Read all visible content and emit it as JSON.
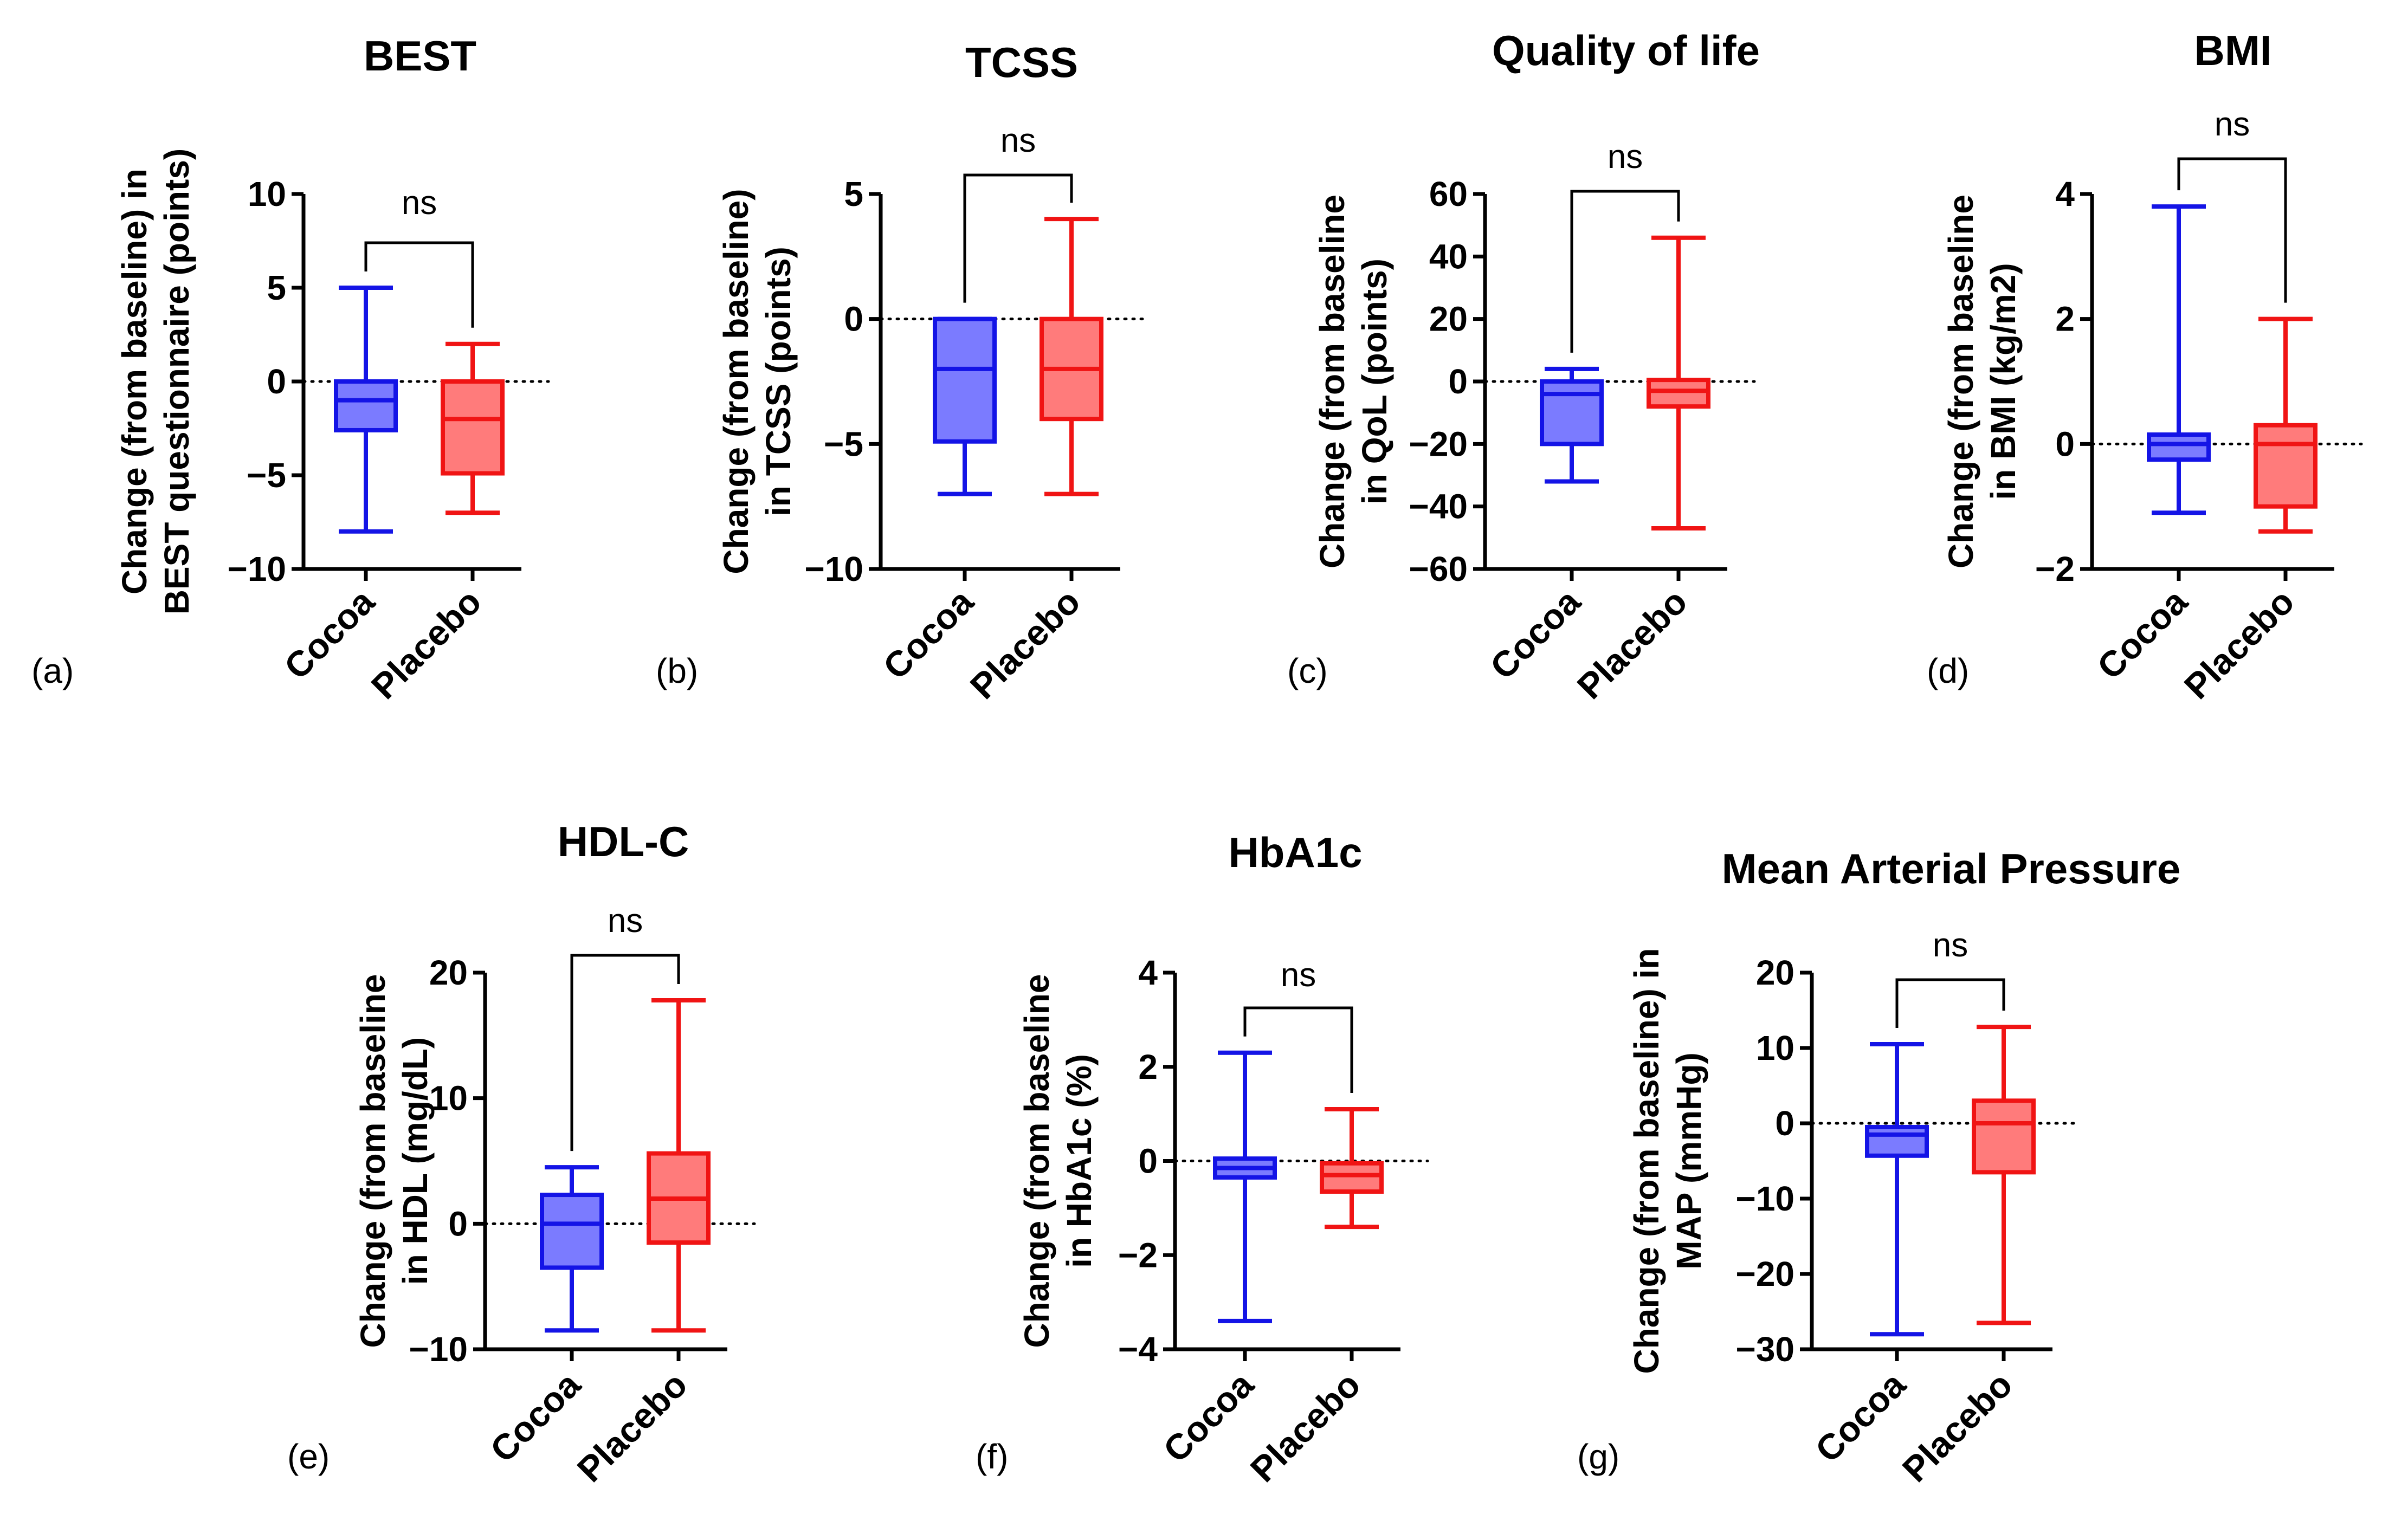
{
  "figure": {
    "colors": {
      "cocoa_stroke": "#1414e6",
      "cocoa_fill": "#7b7bff",
      "placebo_stroke": "#f01414",
      "placebo_fill": "#ff7b7b"
    },
    "categories": [
      "Cocoa",
      "Placebo"
    ]
  },
  "chart_data": [
    {
      "type": "box",
      "panel_label": "(a)",
      "title": "BEST",
      "ylabel": [
        "Change (from baseline) in",
        "BEST questionnaire (points)"
      ],
      "ylim": [
        -10,
        10
      ],
      "yticks": [
        "10",
        "5",
        "0",
        "−5",
        "−10"
      ],
      "ytick_values": [
        10,
        5,
        0,
        -5,
        -10
      ],
      "significance": "ns",
      "categories": [
        "Cocoa",
        "Placebo"
      ],
      "series": [
        {
          "name": "Cocoa",
          "min": -8,
          "q1": -2.6,
          "median": -1,
          "q3": 0,
          "max": 5
        },
        {
          "name": "Placebo",
          "min": -7,
          "q1": -4.9,
          "median": -2,
          "q3": 0,
          "max": 2
        }
      ],
      "reference_line": 0
    },
    {
      "type": "box",
      "panel_label": "(b)",
      "title": "TCSS",
      "ylabel": [
        "Change (from baseline)",
        "in TCSS (points)"
      ],
      "ylim": [
        -10,
        5
      ],
      "yticks": [
        "5",
        "0",
        "−5",
        "−10"
      ],
      "ytick_values": [
        5,
        0,
        -5,
        -10
      ],
      "significance": "ns",
      "categories": [
        "Cocoa",
        "Placebo"
      ],
      "series": [
        {
          "name": "Cocoa",
          "min": -7,
          "q1": -4.9,
          "median": -2,
          "q3": 0,
          "max": 0
        },
        {
          "name": "Placebo",
          "min": -7,
          "q1": -4,
          "median": -2,
          "q3": 0,
          "max": 4
        }
      ],
      "reference_line": 0
    },
    {
      "type": "box",
      "panel_label": "(c)",
      "title": "Quality of life",
      "ylabel": [
        "Change (from baseline",
        "in QoL (points)"
      ],
      "ylim": [
        -60,
        60
      ],
      "yticks": [
        "60",
        "40",
        "20",
        "0",
        "−20",
        "−40",
        "−60"
      ],
      "ytick_values": [
        60,
        40,
        20,
        0,
        -20,
        -40,
        -60
      ],
      "significance": "ns",
      "categories": [
        "Cocoa",
        "Placebo"
      ],
      "series": [
        {
          "name": "Cocoa",
          "min": -32,
          "q1": -20,
          "median": -4,
          "q3": 0,
          "max": 4
        },
        {
          "name": "Placebo",
          "min": -47,
          "q1": -8,
          "median": -3,
          "q3": 0.5,
          "max": 46
        }
      ],
      "reference_line": 0
    },
    {
      "type": "box",
      "panel_label": "(d)",
      "title": "BMI",
      "ylabel": [
        "Change (from baseline",
        "in BMI (kg/m2)"
      ],
      "ylim": [
        -2,
        4
      ],
      "yticks": [
        "4",
        "2",
        "0",
        "−2"
      ],
      "ytick_values": [
        4,
        2,
        0,
        -2
      ],
      "significance": "ns",
      "categories": [
        "Cocoa",
        "Placebo"
      ],
      "series": [
        {
          "name": "Cocoa",
          "min": -1.1,
          "q1": -0.25,
          "median": 0,
          "q3": 0.15,
          "max": 3.8
        },
        {
          "name": "Placebo",
          "min": -1.4,
          "q1": -1,
          "median": 0,
          "q3": 0.3,
          "max": 2
        }
      ],
      "reference_line": 0
    },
    {
      "type": "box",
      "panel_label": "(e)",
      "title": "HDL-C",
      "ylabel": [
        "Change (from baseline",
        "in HDL (mg/dL)"
      ],
      "ylim": [
        -10,
        20
      ],
      "yticks": [
        "20",
        "10",
        "0",
        "−10"
      ],
      "ytick_values": [
        20,
        10,
        0,
        -10
      ],
      "significance": "ns",
      "categories": [
        "Cocoa",
        "Placebo"
      ],
      "series": [
        {
          "name": "Cocoa",
          "min": -8.5,
          "q1": -3.5,
          "median": 0,
          "q3": 2.3,
          "max": 4.5
        },
        {
          "name": "Placebo",
          "min": -8.5,
          "q1": -1.5,
          "median": 2,
          "q3": 5.6,
          "max": 17.8
        }
      ],
      "reference_line": 0
    },
    {
      "type": "box",
      "panel_label": "(f)",
      "title": "HbA1c",
      "ylabel": [
        "Change (from baseline",
        "in HbA1c (%)"
      ],
      "ylim": [
        -4,
        4
      ],
      "yticks": [
        "4",
        "2",
        "0",
        "−2",
        "−4"
      ],
      "ytick_values": [
        4,
        2,
        0,
        -2,
        -4
      ],
      "significance": "ns",
      "categories": [
        "Cocoa",
        "Placebo"
      ],
      "series": [
        {
          "name": "Cocoa",
          "min": -3.4,
          "q1": -0.35,
          "median": -0.15,
          "q3": 0.05,
          "max": 2.3
        },
        {
          "name": "Placebo",
          "min": -1.4,
          "q1": -0.65,
          "median": -0.3,
          "q3": -0.05,
          "max": 1.1
        }
      ],
      "reference_line": 0
    },
    {
      "type": "box",
      "panel_label": "(g)",
      "title": "Mean Arterial Pressure",
      "ylabel": [
        "Change (from baseline) in",
        "MAP (mmHg)"
      ],
      "ylim": [
        -30,
        20
      ],
      "yticks": [
        "20",
        "10",
        "0",
        "−10",
        "−20",
        "−30"
      ],
      "ytick_values": [
        20,
        10,
        0,
        -10,
        -20,
        -30
      ],
      "significance": "ns",
      "categories": [
        "Cocoa",
        "Placebo"
      ],
      "series": [
        {
          "name": "Cocoa",
          "min": -28,
          "q1": -4.3,
          "median": -1.5,
          "q3": -0.5,
          "max": 10.5
        },
        {
          "name": "Placebo",
          "min": -26.5,
          "q1": -6.5,
          "median": 0,
          "q3": 3,
          "max": 12.8
        }
      ],
      "reference_line": 0
    }
  ]
}
